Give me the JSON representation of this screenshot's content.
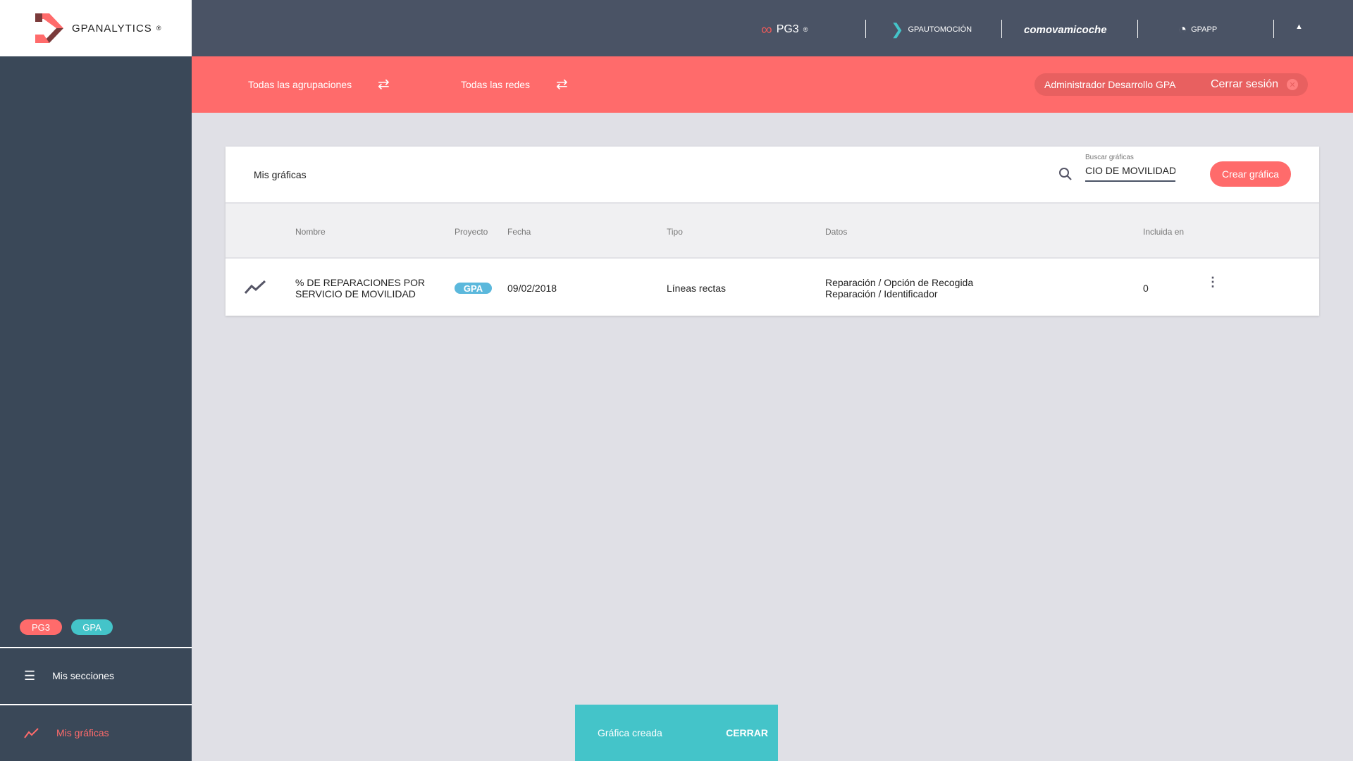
{
  "app": {
    "logo_text": "GPANALYTICS"
  },
  "topbar": {
    "brands": [
      "PG3",
      "GPAUTOMOCIÓN",
      "comovamicoche",
      "GPAPP"
    ],
    "collapse_icon": "triangle-up-icon"
  },
  "filters": {
    "groupings": "Todas las agrupaciones",
    "networks": "Todas las redes"
  },
  "user": {
    "name": "Administrador Desarrollo GPA",
    "logout": "Cerrar sesión"
  },
  "card": {
    "title": "Mis gráficas",
    "search_label": "Buscar gráficas",
    "search_value": "CIO DE MOVILIDAD",
    "create_button": "Crear gráfica"
  },
  "table": {
    "headers": [
      "Nombre",
      "Proyecto",
      "Fecha",
      "Tipo",
      "Datos",
      "Incluida en"
    ],
    "rows": [
      {
        "name_line1": "% DE REPARACIONES POR",
        "name_line2": "SERVICIO DE MOVILIDAD",
        "project": "GPA",
        "date": "09/02/2018",
        "type": "Líneas rectas",
        "data_line1": "Reparación / Opción de Recogida",
        "data_line2": "Reparación / Identificador",
        "included": "0"
      }
    ]
  },
  "sidebar": {
    "badges": [
      "PG3",
      "GPA"
    ],
    "items": [
      {
        "label": "Mis secciones"
      },
      {
        "label": "Mis gráficas"
      }
    ]
  },
  "snackbar": {
    "message": "Gráfica creada",
    "action": "CERRAR"
  },
  "colors": {
    "accent": "#ff6b6b",
    "teal": "#44c4c9",
    "topbar": "#4a5365",
    "sidebar": "#3a4858",
    "project_badge": "#5bb8dc"
  }
}
